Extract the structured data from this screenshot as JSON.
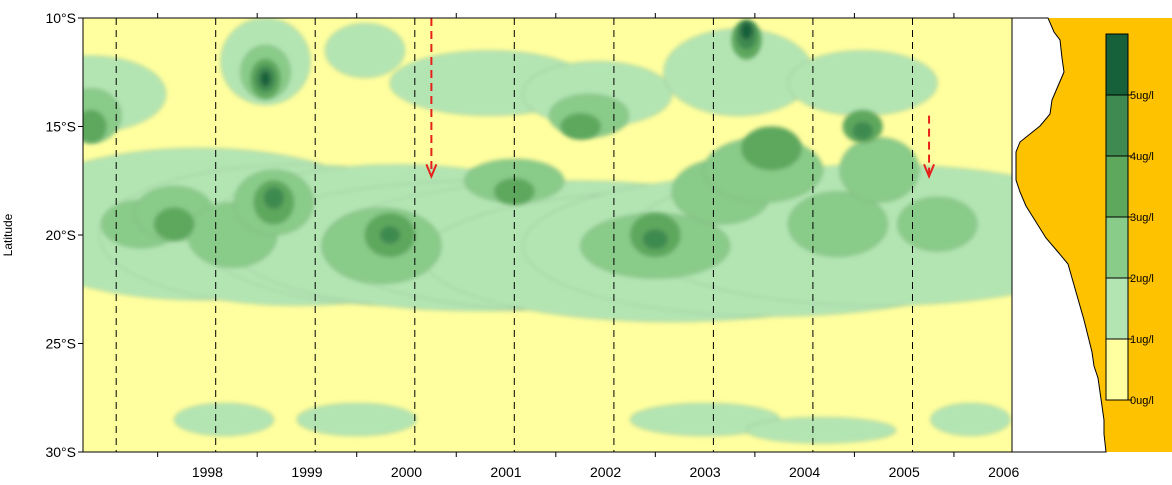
{
  "chart_data": {
    "type": "heatmap",
    "title": "",
    "xlabel": "",
    "ylabel": "Latitude",
    "x_tick_labels": [
      "1998",
      "1999",
      "2000",
      "2001",
      "2002",
      "2003",
      "2004",
      "2005",
      "2006"
    ],
    "y_tick_labels": [
      "10°S",
      "15°S",
      "20°S",
      "25°S",
      "30°S"
    ],
    "x_range": [
      "1997-04",
      "2006-08"
    ],
    "y_range_deg_south": [
      10,
      30
    ],
    "year_boundaries_dashed": [
      "1997-08",
      "1998-08",
      "1999-08",
      "2000-08",
      "2001-08",
      "2002-08",
      "2003-08",
      "2004-08",
      "2005-08"
    ],
    "arrows": [
      {
        "time": "2000-10",
        "from_lat_s": 10,
        "to_lat_s": 17.3
      },
      {
        "time": "2005-10",
        "from_lat_s": 14.5,
        "to_lat_s": 17.3
      }
    ],
    "colorbar": {
      "labels": [
        "0ug/l",
        "1ug/l",
        "2ug/l",
        "3ug/l",
        "4ug/l",
        "5ug/l"
      ],
      "levels": [
        0,
        1,
        2,
        3,
        4,
        5
      ],
      "colors": [
        "#ffff9f",
        "#b3e5b3",
        "#89cb89",
        "#5da85d",
        "#3e8a50",
        "#16613a"
      ]
    },
    "series": [
      {
        "level": 1,
        "regions": [
          {
            "t": "1997-05",
            "lat": 13.5,
            "dt": 1.5,
            "dlat": 3.5
          },
          {
            "t": "1997-10",
            "lat": 19.5,
            "dt": 3,
            "dlat": 6
          },
          {
            "t": "1998-06",
            "lat": 19.5,
            "dt": 4,
            "dlat": 7
          },
          {
            "t": "1999-06",
            "lat": 20.0,
            "dt": 4,
            "dlat": 6.5
          },
          {
            "t": "2000-06",
            "lat": 20.0,
            "dt": 4,
            "dlat": 6.5
          },
          {
            "t": "2001-04",
            "lat": 20.5,
            "dt": 5,
            "dlat": 6
          },
          {
            "t": "2002-03",
            "lat": 20.5,
            "dt": 5,
            "dlat": 6
          },
          {
            "t": "2003-03",
            "lat": 21.0,
            "dt": 5,
            "dlat": 6
          },
          {
            "t": "2004-03",
            "lat": 20.5,
            "dt": 5,
            "dlat": 6.5
          },
          {
            "t": "2005-04",
            "lat": 20.0,
            "dt": 5,
            "dlat": 6.5
          },
          {
            "t": "1999-02",
            "lat": 12.0,
            "dt": 0.9,
            "dlat": 4
          },
          {
            "t": "2000-02",
            "lat": 11.5,
            "dt": 0.8,
            "dlat": 2.5
          },
          {
            "t": "2001-05",
            "lat": 13.0,
            "dt": 2,
            "dlat": 3
          },
          {
            "t": "2002-06",
            "lat": 13.5,
            "dt": 1.5,
            "dlat": 3
          },
          {
            "t": "2003-11",
            "lat": 12.5,
            "dt": 1.5,
            "dlat": 4
          },
          {
            "t": "2005-02",
            "lat": 13.0,
            "dt": 1.5,
            "dlat": 3
          },
          {
            "t": "1998-09",
            "lat": 28.5,
            "dt": 1,
            "dlat": 1.5
          },
          {
            "t": "2000-01",
            "lat": 28.5,
            "dt": 1.2,
            "dlat": 1.5
          },
          {
            "t": "2003-07",
            "lat": 28.5,
            "dt": 1.5,
            "dlat": 1.5
          },
          {
            "t": "2004-09",
            "lat": 29.0,
            "dt": 1.5,
            "dlat": 1.2
          },
          {
            "t": "2006-03",
            "lat": 28.5,
            "dt": 0.8,
            "dlat": 1.5
          }
        ]
      },
      {
        "level": 2,
        "regions": [
          {
            "t": "1997-05",
            "lat": 14.5,
            "dt": 0.6,
            "dlat": 2.5
          },
          {
            "t": "1997-11",
            "lat": 19.5,
            "dt": 0.8,
            "dlat": 2.2
          },
          {
            "t": "1998-03",
            "lat": 19.0,
            "dt": 0.8,
            "dlat": 2.5
          },
          {
            "t": "1998-10",
            "lat": 20.0,
            "dt": 0.9,
            "dlat": 3
          },
          {
            "t": "1999-03",
            "lat": 18.5,
            "dt": 0.8,
            "dlat": 3
          },
          {
            "t": "1999-02",
            "lat": 12.5,
            "dt": 0.5,
            "dlat": 2.5
          },
          {
            "t": "2000-04",
            "lat": 20.5,
            "dt": 1.2,
            "dlat": 3.5
          },
          {
            "t": "2001-08",
            "lat": 17.5,
            "dt": 1,
            "dlat": 2
          },
          {
            "t": "2002-05",
            "lat": 14.5,
            "dt": 0.8,
            "dlat": 2
          },
          {
            "t": "2003-01",
            "lat": 20.5,
            "dt": 1.5,
            "dlat": 3
          },
          {
            "t": "2003-09",
            "lat": 18.0,
            "dt": 1,
            "dlat": 3
          },
          {
            "t": "2004-02",
            "lat": 17.0,
            "dt": 1.2,
            "dlat": 3
          },
          {
            "t": "2004-11",
            "lat": 19.5,
            "dt": 1,
            "dlat": 3
          },
          {
            "t": "2005-04",
            "lat": 17.0,
            "dt": 0.8,
            "dlat": 3
          },
          {
            "t": "2005-11",
            "lat": 19.5,
            "dt": 0.8,
            "dlat": 2.5
          }
        ]
      },
      {
        "level": 3,
        "regions": [
          {
            "t": "1997-05",
            "lat": 15.0,
            "dt": 0.3,
            "dlat": 1.5
          },
          {
            "t": "1998-03",
            "lat": 19.5,
            "dt": 0.4,
            "dlat": 1.5
          },
          {
            "t": "1999-02",
            "lat": 12.8,
            "dt": 0.3,
            "dlat": 1.8
          },
          {
            "t": "1999-03",
            "lat": 18.5,
            "dt": 0.4,
            "dlat": 2
          },
          {
            "t": "2000-05",
            "lat": 20.0,
            "dt": 0.5,
            "dlat": 2
          },
          {
            "t": "2001-08",
            "lat": 18.0,
            "dt": 0.4,
            "dlat": 1.2
          },
          {
            "t": "2002-04",
            "lat": 15.0,
            "dt": 0.4,
            "dlat": 1.2
          },
          {
            "t": "2003-01",
            "lat": 20.0,
            "dt": 0.5,
            "dlat": 2
          },
          {
            "t": "2003-12",
            "lat": 11.0,
            "dt": 0.3,
            "dlat": 1.8
          },
          {
            "t": "2004-03",
            "lat": 16.0,
            "dt": 0.6,
            "dlat": 2
          },
          {
            "t": "2005-02",
            "lat": 15.0,
            "dt": 0.4,
            "dlat": 1.5
          }
        ]
      },
      {
        "level": 4,
        "regions": [
          {
            "t": "1999-02",
            "lat": 12.8,
            "dt": 0.2,
            "dlat": 1.2
          },
          {
            "t": "1999-03",
            "lat": 18.3,
            "dt": 0.2,
            "dlat": 1
          },
          {
            "t": "2000-05",
            "lat": 20.0,
            "dt": 0.2,
            "dlat": 0.8
          },
          {
            "t": "2003-01",
            "lat": 20.2,
            "dt": 0.25,
            "dlat": 0.9
          },
          {
            "t": "2003-12",
            "lat": 10.8,
            "dt": 0.2,
            "dlat": 1.3
          },
          {
            "t": "2005-02",
            "lat": 15.2,
            "dt": 0.2,
            "dlat": 0.8
          }
        ]
      },
      {
        "level": 5,
        "regions": [
          {
            "t": "1999-02",
            "lat": 12.8,
            "dt": 0.1,
            "dlat": 0.7
          },
          {
            "t": "2003-12",
            "lat": 10.6,
            "dt": 0.12,
            "dlat": 0.8
          }
        ]
      }
    ]
  }
}
